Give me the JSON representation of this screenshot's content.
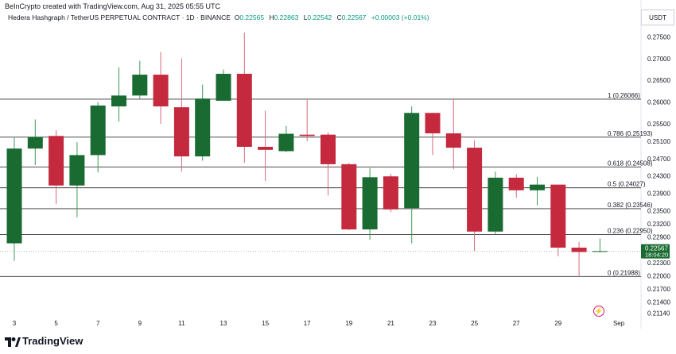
{
  "header": {
    "created_by": "BeInCrypto created with TradingView.com, Aug 31, 2025 05:55 UTC",
    "symbol": "Hedera Hashgraph / TetherUS PERPETUAL CONTRACT · 1D · BINANCE",
    "open_label": "O",
    "open": "0.22565",
    "high_label": "H",
    "high": "0.22863",
    "low_label": "L",
    "low": "0.22542",
    "close_label": "C",
    "close": "0.22567",
    "change": "+0.00003 (+0.01%)"
  },
  "currency": "USDT",
  "brand": "TradingView",
  "price_tag": {
    "price": "0.22567",
    "countdown": "18:04:20"
  },
  "colors": {
    "up": "#1a6b32",
    "down": "#c4293d",
    "fib": "#333333",
    "tag": "#1a6b32",
    "accent": "#d81b60"
  },
  "chart_data": {
    "type": "candlestick",
    "ylim": [
      0.2108,
      0.278
    ],
    "y_ticks": [
      "0.27500",
      "0.27000",
      "0.26500",
      "0.26000",
      "0.25500",
      "0.25100",
      "0.24700",
      "0.24300",
      "0.23900",
      "0.23500",
      "0.23200",
      "0.22900",
      "0.22300",
      "0.22000",
      "0.21700",
      "0.21400",
      "0.21140"
    ],
    "x_ticks": [
      {
        "label": "3",
        "index": 0
      },
      {
        "label": "5",
        "index": 2
      },
      {
        "label": "7",
        "index": 4
      },
      {
        "label": "9",
        "index": 6
      },
      {
        "label": "11",
        "index": 8
      },
      {
        "label": "13",
        "index": 10
      },
      {
        "label": "15",
        "index": 12
      },
      {
        "label": "17",
        "index": 14
      },
      {
        "label": "19",
        "index": 16
      },
      {
        "label": "21",
        "index": 18
      },
      {
        "label": "23",
        "index": 20
      },
      {
        "label": "25",
        "index": 22
      },
      {
        "label": "27",
        "index": 24
      },
      {
        "label": "29",
        "index": 26
      },
      {
        "label": "Sep",
        "index": 28.9
      }
    ],
    "fib_levels": [
      {
        "label": "1 (0.26066)",
        "value": 0.26066
      },
      {
        "label": "0.786 (0.25193)",
        "value": 0.25193
      },
      {
        "label": "0.618 (0.24508)",
        "value": 0.24508
      },
      {
        "label": "0.5 (0.24027)",
        "value": 0.24027
      },
      {
        "label": "0.382 (0.23546)",
        "value": 0.23546
      },
      {
        "label": "0.236 (0.22950)",
        "value": 0.2295
      },
      {
        "label": "0 (0.21988)",
        "value": 0.21988
      }
    ],
    "current_price": 0.22567,
    "candles": [
      {
        "o": 0.2275,
        "h": 0.2518,
        "l": 0.2235,
        "c": 0.2493
      },
      {
        "o": 0.2493,
        "h": 0.256,
        "l": 0.2455,
        "c": 0.252
      },
      {
        "o": 0.2522,
        "h": 0.2535,
        "l": 0.2365,
        "c": 0.2408
      },
      {
        "o": 0.2408,
        "h": 0.2508,
        "l": 0.2335,
        "c": 0.2478
      },
      {
        "o": 0.2478,
        "h": 0.26,
        "l": 0.2438,
        "c": 0.2592
      },
      {
        "o": 0.259,
        "h": 0.268,
        "l": 0.2555,
        "c": 0.2615
      },
      {
        "o": 0.2615,
        "h": 0.2695,
        "l": 0.2608,
        "c": 0.2663
      },
      {
        "o": 0.2663,
        "h": 0.2715,
        "l": 0.255,
        "c": 0.259
      },
      {
        "o": 0.2588,
        "h": 0.27,
        "l": 0.244,
        "c": 0.2475
      },
      {
        "o": 0.2475,
        "h": 0.264,
        "l": 0.2465,
        "c": 0.2608
      },
      {
        "o": 0.2603,
        "h": 0.2675,
        "l": 0.2603,
        "c": 0.2665
      },
      {
        "o": 0.2665,
        "h": 0.276,
        "l": 0.246,
        "c": 0.2497
      },
      {
        "o": 0.2497,
        "h": 0.258,
        "l": 0.2418,
        "c": 0.249
      },
      {
        "o": 0.2487,
        "h": 0.2545,
        "l": 0.2485,
        "c": 0.2527
      },
      {
        "o": 0.2525,
        "h": 0.2605,
        "l": 0.251,
        "c": 0.2522
      },
      {
        "o": 0.2525,
        "h": 0.253,
        "l": 0.2385,
        "c": 0.2457
      },
      {
        "o": 0.2457,
        "h": 0.246,
        "l": 0.2305,
        "c": 0.2307
      },
      {
        "o": 0.2307,
        "h": 0.2448,
        "l": 0.2283,
        "c": 0.2427
      },
      {
        "o": 0.2429,
        "h": 0.2435,
        "l": 0.2347,
        "c": 0.2353
      },
      {
        "o": 0.2356,
        "h": 0.259,
        "l": 0.2275,
        "c": 0.2575
      },
      {
        "o": 0.2575,
        "h": 0.2575,
        "l": 0.2478,
        "c": 0.2528
      },
      {
        "o": 0.2528,
        "h": 0.2608,
        "l": 0.2445,
        "c": 0.2495
      },
      {
        "o": 0.2495,
        "h": 0.2512,
        "l": 0.2257,
        "c": 0.2302
      },
      {
        "o": 0.2302,
        "h": 0.244,
        "l": 0.2295,
        "c": 0.2426
      },
      {
        "o": 0.2426,
        "h": 0.2434,
        "l": 0.238,
        "c": 0.2397
      },
      {
        "o": 0.2397,
        "h": 0.2428,
        "l": 0.2362,
        "c": 0.241
      },
      {
        "o": 0.241,
        "h": 0.241,
        "l": 0.2245,
        "c": 0.2265
      },
      {
        "o": 0.2265,
        "h": 0.2278,
        "l": 0.2198,
        "c": 0.2255
      },
      {
        "o": 0.2256,
        "h": 0.2286,
        "l": 0.2254,
        "c": 0.2257
      }
    ]
  }
}
